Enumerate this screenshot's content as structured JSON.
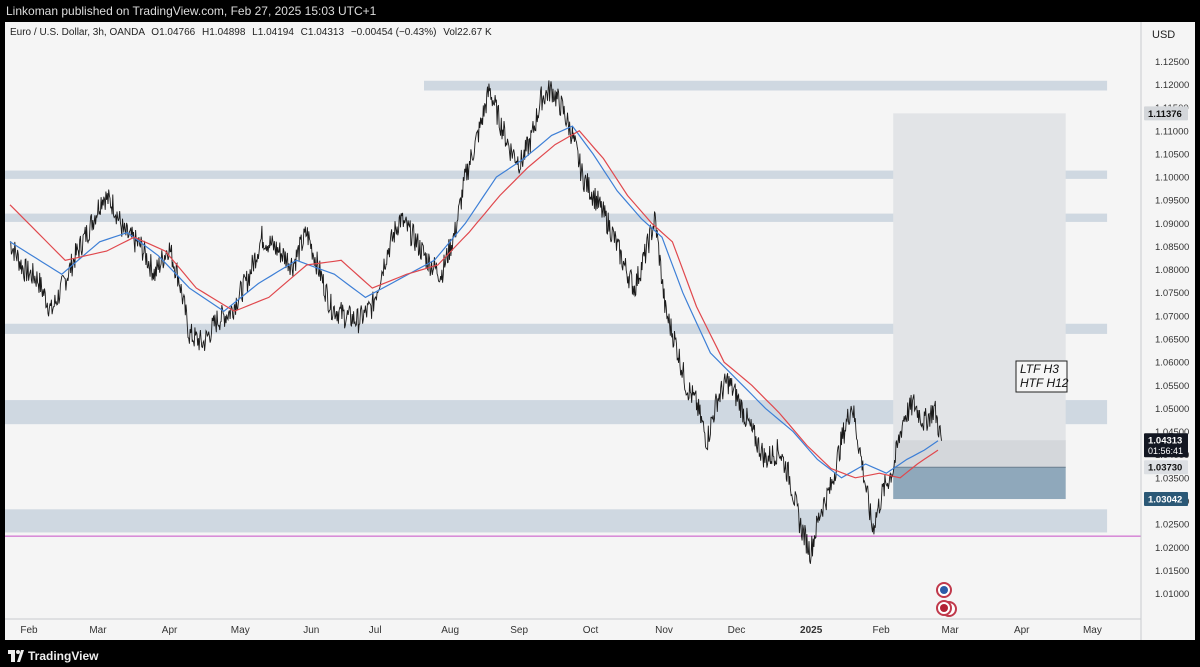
{
  "header": {
    "published": "Linkoman published on TradingView.com, Feb 27, 2025 15:03 UTC+1"
  },
  "footer": {
    "brand": "TradingView"
  },
  "legend": {
    "symbol": "Euro / U.S. Dollar, 3h, OANDA",
    "o_label": "O",
    "o": "1.04766",
    "h_label": "H",
    "h": "1.04898",
    "l_label": "L",
    "l": "1.04194",
    "c_label": "C",
    "c": "1.04313",
    "change": "−0.00454 (−0.43%)",
    "vol_label": "Vol",
    "vol": "22.67 K"
  },
  "annotation": {
    "line1": "LTF H3",
    "line2": "HTF H12"
  },
  "colors": {
    "ema_blue": "#3d7fd6",
    "ema_red": "#e0484d",
    "zone": "#cfd8e1",
    "projection": "#e2e4e7",
    "stop_zone": "#8fa8bb",
    "magenta_line": "#c64fc6",
    "price_badge": "#131722",
    "stop_badge": "#2b5876"
  },
  "chart_data": {
    "type": "line",
    "title": "Euro / U.S. Dollar, 3h, OANDA",
    "currency": "USD",
    "ylim": [
      1.0045,
      1.1335
    ],
    "y_ticks": [
      "1.01000",
      "1.01500",
      "1.02000",
      "1.02500",
      "1.03000",
      "1.03500",
      "1.04000",
      "1.04500",
      "1.05000",
      "1.05500",
      "1.06000",
      "1.06500",
      "1.07000",
      "1.07500",
      "1.08000",
      "1.08500",
      "1.09000",
      "1.09500",
      "1.10000",
      "1.10500",
      "1.11000",
      "1.11500",
      "1.12000",
      "1.12500"
    ],
    "x_ticks": [
      {
        "label": "Feb",
        "t": 0.3
      },
      {
        "label": "Mar",
        "t": 2.3
      },
      {
        "label": "Apr",
        "t": 4.4
      },
      {
        "label": "May",
        "t": 6.4
      },
      {
        "label": "Jun",
        "t": 8.5
      },
      {
        "label": "Jul",
        "t": 10.4
      },
      {
        "label": "Aug",
        "t": 12.5
      },
      {
        "label": "Sep",
        "t": 14.5
      },
      {
        "label": "Oct",
        "t": 16.6
      },
      {
        "label": "Nov",
        "t": 18.7
      },
      {
        "label": "Dec",
        "t": 20.8
      },
      {
        "label": "2025",
        "t": 22.9
      },
      {
        "label": "Feb",
        "t": 25.0
      },
      {
        "label": "Mar",
        "t": 27.0
      },
      {
        "label": "Apr",
        "t": 29.1
      },
      {
        "label": "May",
        "t": 31.1
      }
    ],
    "price": [
      {
        "t": 0.0,
        "v": 1.086
      },
      {
        "t": 0.4,
        "v": 1.08
      },
      {
        "t": 0.8,
        "v": 1.078
      },
      {
        "t": 1.2,
        "v": 1.071
      },
      {
        "t": 1.5,
        "v": 1.076
      },
      {
        "t": 1.9,
        "v": 1.083
      },
      {
        "t": 2.3,
        "v": 1.089
      },
      {
        "t": 2.7,
        "v": 1.096
      },
      {
        "t": 3.0,
        "v": 1.094
      },
      {
        "t": 3.3,
        "v": 1.088
      },
      {
        "t": 3.8,
        "v": 1.085
      },
      {
        "t": 4.2,
        "v": 1.079
      },
      {
        "t": 4.6,
        "v": 1.085
      },
      {
        "t": 4.9,
        "v": 1.078
      },
      {
        "t": 5.2,
        "v": 1.066
      },
      {
        "t": 5.6,
        "v": 1.064
      },
      {
        "t": 6.0,
        "v": 1.069
      },
      {
        "t": 6.4,
        "v": 1.071
      },
      {
        "t": 6.9,
        "v": 1.078
      },
      {
        "t": 7.3,
        "v": 1.087
      },
      {
        "t": 7.8,
        "v": 1.084
      },
      {
        "t": 8.2,
        "v": 1.081
      },
      {
        "t": 8.6,
        "v": 1.088
      },
      {
        "t": 9.0,
        "v": 1.079
      },
      {
        "t": 9.3,
        "v": 1.072
      },
      {
        "t": 9.7,
        "v": 1.07
      },
      {
        "t": 10.1,
        "v": 1.069
      },
      {
        "t": 10.5,
        "v": 1.072
      },
      {
        "t": 10.9,
        "v": 1.083
      },
      {
        "t": 11.3,
        "v": 1.091
      },
      {
        "t": 11.7,
        "v": 1.087
      },
      {
        "t": 12.1,
        "v": 1.082
      },
      {
        "t": 12.5,
        "v": 1.079
      },
      {
        "t": 12.9,
        "v": 1.088
      },
      {
        "t": 13.2,
        "v": 1.1
      },
      {
        "t": 13.6,
        "v": 1.11
      },
      {
        "t": 13.9,
        "v": 1.119
      },
      {
        "t": 14.2,
        "v": 1.112
      },
      {
        "t": 14.5,
        "v": 1.106
      },
      {
        "t": 14.8,
        "v": 1.103
      },
      {
        "t": 15.1,
        "v": 1.108
      },
      {
        "t": 15.4,
        "v": 1.117
      },
      {
        "t": 15.7,
        "v": 1.119
      },
      {
        "t": 16.0,
        "v": 1.115
      },
      {
        "t": 16.3,
        "v": 1.109
      },
      {
        "t": 16.6,
        "v": 1.1
      },
      {
        "t": 17.0,
        "v": 1.095
      },
      {
        "t": 17.4,
        "v": 1.089
      },
      {
        "t": 17.8,
        "v": 1.081
      },
      {
        "t": 18.1,
        "v": 1.076
      },
      {
        "t": 18.4,
        "v": 1.083
      },
      {
        "t": 18.7,
        "v": 1.091
      },
      {
        "t": 19.0,
        "v": 1.071
      },
      {
        "t": 19.3,
        "v": 1.064
      },
      {
        "t": 19.6,
        "v": 1.055
      },
      {
        "t": 19.9,
        "v": 1.051
      },
      {
        "t": 20.2,
        "v": 1.043
      },
      {
        "t": 20.5,
        "v": 1.052
      },
      {
        "t": 20.8,
        "v": 1.056
      },
      {
        "t": 21.1,
        "v": 1.052
      },
      {
        "t": 21.5,
        "v": 1.045
      },
      {
        "t": 21.9,
        "v": 1.039
      },
      {
        "t": 22.3,
        "v": 1.041
      },
      {
        "t": 22.6,
        "v": 1.035
      },
      {
        "t": 22.9,
        "v": 1.025
      },
      {
        "t": 23.2,
        "v": 1.019
      },
      {
        "t": 23.5,
        "v": 1.028
      },
      {
        "t": 23.8,
        "v": 1.033
      },
      {
        "t": 24.1,
        "v": 1.043
      },
      {
        "t": 24.4,
        "v": 1.051
      },
      {
        "t": 24.7,
        "v": 1.038
      },
      {
        "t": 25.0,
        "v": 1.024
      },
      {
        "t": 25.3,
        "v": 1.032
      },
      {
        "t": 25.6,
        "v": 1.037
      },
      {
        "t": 25.9,
        "v": 1.048
      },
      {
        "t": 26.2,
        "v": 1.051
      },
      {
        "t": 26.5,
        "v": 1.047
      },
      {
        "t": 26.8,
        "v": 1.05
      },
      {
        "t": 27.0,
        "v": 1.043
      }
    ],
    "ema_blue": [
      {
        "t": 0.0,
        "v": 1.086
      },
      {
        "t": 1.5,
        "v": 1.079
      },
      {
        "t": 2.6,
        "v": 1.086
      },
      {
        "t": 3.4,
        "v": 1.088
      },
      {
        "t": 4.3,
        "v": 1.083
      },
      {
        "t": 5.2,
        "v": 1.076
      },
      {
        "t": 6.2,
        "v": 1.071
      },
      {
        "t": 7.2,
        "v": 1.077
      },
      {
        "t": 8.3,
        "v": 1.082
      },
      {
        "t": 9.4,
        "v": 1.079
      },
      {
        "t": 10.3,
        "v": 1.074
      },
      {
        "t": 11.3,
        "v": 1.078
      },
      {
        "t": 12.3,
        "v": 1.082
      },
      {
        "t": 13.2,
        "v": 1.09
      },
      {
        "t": 14.1,
        "v": 1.1
      },
      {
        "t": 14.9,
        "v": 1.104
      },
      {
        "t": 15.7,
        "v": 1.109
      },
      {
        "t": 16.3,
        "v": 1.111
      },
      {
        "t": 16.9,
        "v": 1.105
      },
      {
        "t": 17.6,
        "v": 1.097
      },
      {
        "t": 18.3,
        "v": 1.091
      },
      {
        "t": 18.9,
        "v": 1.087
      },
      {
        "t": 19.5,
        "v": 1.075
      },
      {
        "t": 20.3,
        "v": 1.062
      },
      {
        "t": 21.1,
        "v": 1.056
      },
      {
        "t": 21.9,
        "v": 1.05
      },
      {
        "t": 22.7,
        "v": 1.045
      },
      {
        "t": 23.4,
        "v": 1.039
      },
      {
        "t": 24.1,
        "v": 1.035
      },
      {
        "t": 24.8,
        "v": 1.038
      },
      {
        "t": 25.4,
        "v": 1.036
      },
      {
        "t": 26.0,
        "v": 1.039
      },
      {
        "t": 26.5,
        "v": 1.041
      },
      {
        "t": 26.9,
        "v": 1.043
      }
    ],
    "ema_red": [
      {
        "t": 0.0,
        "v": 1.094
      },
      {
        "t": 1.6,
        "v": 1.082
      },
      {
        "t": 2.8,
        "v": 1.084
      },
      {
        "t": 3.6,
        "v": 1.087
      },
      {
        "t": 4.5,
        "v": 1.084
      },
      {
        "t": 5.4,
        "v": 1.076
      },
      {
        "t": 6.5,
        "v": 1.071
      },
      {
        "t": 7.5,
        "v": 1.074
      },
      {
        "t": 8.6,
        "v": 1.081
      },
      {
        "t": 9.6,
        "v": 1.082
      },
      {
        "t": 10.5,
        "v": 1.076
      },
      {
        "t": 11.5,
        "v": 1.079
      },
      {
        "t": 12.4,
        "v": 1.081
      },
      {
        "t": 13.3,
        "v": 1.088
      },
      {
        "t": 14.2,
        "v": 1.096
      },
      {
        "t": 15.0,
        "v": 1.102
      },
      {
        "t": 15.8,
        "v": 1.107
      },
      {
        "t": 16.5,
        "v": 1.11
      },
      {
        "t": 17.2,
        "v": 1.104
      },
      {
        "t": 17.9,
        "v": 1.096
      },
      {
        "t": 18.6,
        "v": 1.09
      },
      {
        "t": 19.2,
        "v": 1.086
      },
      {
        "t": 19.9,
        "v": 1.072
      },
      {
        "t": 20.7,
        "v": 1.06
      },
      {
        "t": 21.5,
        "v": 1.055
      },
      {
        "t": 22.3,
        "v": 1.049
      },
      {
        "t": 23.1,
        "v": 1.042
      },
      {
        "t": 23.8,
        "v": 1.037
      },
      {
        "t": 24.5,
        "v": 1.035
      },
      {
        "t": 25.2,
        "v": 1.036
      },
      {
        "t": 25.8,
        "v": 1.035
      },
      {
        "t": 26.3,
        "v": 1.038
      },
      {
        "t": 26.9,
        "v": 1.041
      }
    ],
    "zones": [
      {
        "t0": 12.0,
        "t1": 31.8,
        "lo": 1.1187,
        "hi": 1.1208
      },
      {
        "t0": -0.2,
        "t1": 31.8,
        "lo": 1.0996,
        "hi": 1.1014
      },
      {
        "t0": -0.2,
        "t1": 31.8,
        "lo": 1.0903,
        "hi": 1.0921
      },
      {
        "t0": -0.2,
        "t1": 31.8,
        "lo": 1.0661,
        "hi": 1.0683
      },
      {
        "t0": -0.2,
        "t1": 31.8,
        "lo": 1.0466,
        "hi": 1.0518
      },
      {
        "t0": -0.2,
        "t1": 31.8,
        "lo": 1.0232,
        "hi": 1.0282
      }
    ],
    "magenta_line": 1.0224,
    "long_position": {
      "t0": 25.6,
      "t1": 30.6,
      "target": 1.11376,
      "entry": 1.0373,
      "stop": 1.03042,
      "current": 1.04313
    },
    "price_labels": [
      {
        "value": "1.11376",
        "v": 1.11376,
        "style": "target"
      },
      {
        "value": "1.04313",
        "sub": "01:56:41",
        "v": 1.04313,
        "style": "current"
      },
      {
        "value": "1.03730",
        "v": 1.0373,
        "style": "entry"
      },
      {
        "value": "1.03042",
        "v": 1.03042,
        "style": "stop"
      }
    ]
  }
}
